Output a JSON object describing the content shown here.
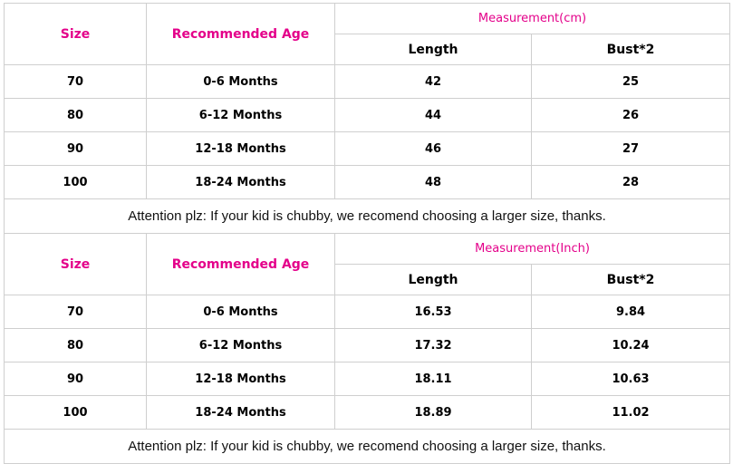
{
  "colors": {
    "header_accent": "#e4008a",
    "border": "#cfcfcf"
  },
  "tables": [
    {
      "headers": {
        "size": "Size",
        "age": "Recommended Age",
        "measurement": "Measurement(cm)",
        "length": "Length",
        "bust": "Bust*2"
      },
      "rows": [
        {
          "size": "70",
          "age": "0-6 Months",
          "length": "42",
          "bust": "25"
        },
        {
          "size": "80",
          "age": "6-12 Months",
          "length": "44",
          "bust": "26"
        },
        {
          "size": "90",
          "age": "12-18 Months",
          "length": "46",
          "bust": "27"
        },
        {
          "size": "100",
          "age": "18-24 Months",
          "length": "48",
          "bust": "28"
        }
      ],
      "note": "Attention plz: If your kid is chubby, we recomend choosing a larger size, thanks."
    },
    {
      "headers": {
        "size": "Size",
        "age": "Recommended Age",
        "measurement": "Measurement(Inch)",
        "length": "Length",
        "bust": "Bust*2"
      },
      "rows": [
        {
          "size": "70",
          "age": "0-6 Months",
          "length": "16.53",
          "bust": "9.84"
        },
        {
          "size": "80",
          "age": "6-12 Months",
          "length": "17.32",
          "bust": "10.24"
        },
        {
          "size": "90",
          "age": "12-18 Months",
          "length": "18.11",
          "bust": "10.63"
        },
        {
          "size": "100",
          "age": "18-24 Months",
          "length": "18.89",
          "bust": "11.02"
        }
      ],
      "note": "Attention plz: If your kid is chubby, we recomend choosing a larger size, thanks."
    }
  ]
}
